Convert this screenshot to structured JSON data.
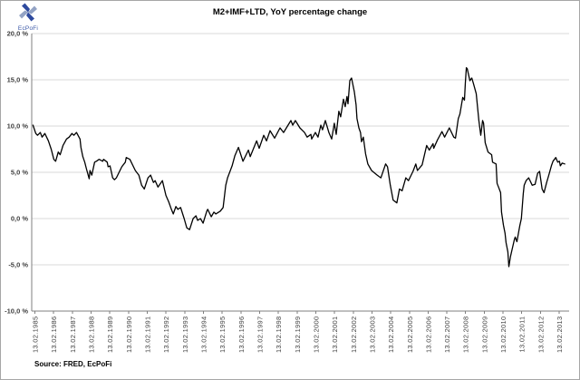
{
  "logo": {
    "text": "EcPoFi",
    "icon": "pinwheel-icon"
  },
  "source_note": "Source: FRED, EcPoFi",
  "colors": {
    "line": "#000000",
    "grid": "#d9d9d9",
    "axis": "#7f7f7f",
    "tick_label": "#404040",
    "title": "#000000",
    "logo_blue": "#2e4a9e",
    "logo_gray": "#93a3c4"
  },
  "chart_data": {
    "type": "line",
    "title": "M2+IMF+LTD, YoY percentage change",
    "xlabel": "",
    "ylabel": "",
    "grid": "horizontal",
    "legend": "none",
    "ylim": [
      -10,
      20
    ],
    "xlim": [
      1984.95,
      2013.65
    ],
    "y_tick_values": [
      20,
      15,
      10,
      5,
      0,
      -5,
      -10
    ],
    "y_tick_labels": [
      "20,0 %",
      "15,0 %",
      "10,0 %",
      "5,0 %",
      "0,0 %",
      "-5,0 %",
      "-10,0 %"
    ],
    "x_tick_labels": [
      "13.02.1985",
      "13.02.1986",
      "13.02.1987",
      "13.02.1988",
      "13.02.1989",
      "13.02.1990",
      "13.02.1991",
      "13.02.1992",
      "13.02.1993",
      "13.02.1994",
      "13.02.1995",
      "13.02.1996",
      "13.02.1997",
      "13.02.1998",
      "13.02.1999",
      "13.02.2000",
      "13.02.2001",
      "13.02.2002",
      "13.02.2003",
      "13.02.2004",
      "13.02.2005",
      "13.02.2006",
      "13.02.2007",
      "13.02.2008",
      "13.02.2009",
      "13.02.2010",
      "13.02.2011",
      "13.02.2012",
      "13.02.2013"
    ],
    "series": [
      {
        "name": "M2+IMF+LTD YoY percentage change",
        "color": "#000000",
        "points": [
          [
            1985.02,
            10.1
          ],
          [
            1985.17,
            9.2
          ],
          [
            1985.26,
            9.0
          ],
          [
            1985.41,
            9.3
          ],
          [
            1985.5,
            8.8
          ],
          [
            1985.65,
            9.2
          ],
          [
            1985.84,
            8.4
          ],
          [
            1985.99,
            7.5
          ],
          [
            1986.13,
            6.4
          ],
          [
            1986.23,
            6.2
          ],
          [
            1986.37,
            7.2
          ],
          [
            1986.47,
            6.9
          ],
          [
            1986.62,
            7.9
          ],
          [
            1986.81,
            8.6
          ],
          [
            1986.95,
            8.8
          ],
          [
            1987.1,
            9.2
          ],
          [
            1987.2,
            9.0
          ],
          [
            1987.34,
            9.3
          ],
          [
            1987.53,
            8.6
          ],
          [
            1987.58,
            7.7
          ],
          [
            1987.68,
            6.7
          ],
          [
            1987.78,
            6.1
          ],
          [
            1987.87,
            5.4
          ],
          [
            1988.02,
            4.3
          ],
          [
            1988.06,
            5.2
          ],
          [
            1988.16,
            4.7
          ],
          [
            1988.31,
            6.1
          ],
          [
            1988.4,
            6.2
          ],
          [
            1988.55,
            6.4
          ],
          [
            1988.74,
            6.2
          ],
          [
            1988.79,
            6.4
          ],
          [
            1988.98,
            6.1
          ],
          [
            1989.03,
            5.6
          ],
          [
            1989.13,
            5.7
          ],
          [
            1989.22,
            4.9
          ],
          [
            1989.27,
            4.4
          ],
          [
            1989.37,
            4.2
          ],
          [
            1989.47,
            4.4
          ],
          [
            1989.76,
            5.6
          ],
          [
            1989.95,
            6.1
          ],
          [
            1990.0,
            6.6
          ],
          [
            1990.19,
            6.4
          ],
          [
            1990.48,
            5.2
          ],
          [
            1990.67,
            4.7
          ],
          [
            1990.82,
            3.6
          ],
          [
            1990.96,
            3.2
          ],
          [
            1991.16,
            4.4
          ],
          [
            1991.3,
            4.7
          ],
          [
            1991.45,
            3.9
          ],
          [
            1991.54,
            4.1
          ],
          [
            1991.69,
            3.4
          ],
          [
            1991.93,
            4.1
          ],
          [
            1992.12,
            2.5
          ],
          [
            1992.27,
            1.8
          ],
          [
            1992.41,
            1.0
          ],
          [
            1992.51,
            0.5
          ],
          [
            1992.65,
            1.3
          ],
          [
            1992.75,
            1.0
          ],
          [
            1992.9,
            1.2
          ],
          [
            1993.09,
            0.0
          ],
          [
            1993.23,
            -1.0
          ],
          [
            1993.38,
            -1.2
          ],
          [
            1993.57,
            0.0
          ],
          [
            1993.72,
            0.3
          ],
          [
            1993.81,
            -0.2
          ],
          [
            1993.96,
            0.0
          ],
          [
            1994.1,
            -0.5
          ],
          [
            1994.3,
            0.8
          ],
          [
            1994.35,
            1.0
          ],
          [
            1994.54,
            0.2
          ],
          [
            1994.68,
            0.7
          ],
          [
            1994.78,
            0.5
          ],
          [
            1995.02,
            0.8
          ],
          [
            1995.17,
            1.2
          ],
          [
            1995.31,
            3.6
          ],
          [
            1995.41,
            4.4
          ],
          [
            1995.65,
            5.7
          ],
          [
            1995.8,
            6.8
          ],
          [
            1995.99,
            7.7
          ],
          [
            1996.23,
            6.2
          ],
          [
            1996.52,
            7.4
          ],
          [
            1996.62,
            6.7
          ],
          [
            1996.96,
            8.4
          ],
          [
            1997.1,
            7.6
          ],
          [
            1997.34,
            9.0
          ],
          [
            1997.49,
            8.4
          ],
          [
            1997.68,
            9.5
          ],
          [
            1997.92,
            8.7
          ],
          [
            1998.21,
            9.8
          ],
          [
            1998.4,
            9.3
          ],
          [
            1998.79,
            10.6
          ],
          [
            1998.89,
            10.1
          ],
          [
            1999.03,
            10.6
          ],
          [
            1999.27,
            9.8
          ],
          [
            1999.42,
            9.5
          ],
          [
            1999.52,
            9.3
          ],
          [
            1999.66,
            8.8
          ],
          [
            1999.86,
            9.1
          ],
          [
            1999.9,
            8.6
          ],
          [
            2000.1,
            9.3
          ],
          [
            2000.24,
            8.8
          ],
          [
            2000.39,
            10.1
          ],
          [
            2000.48,
            9.6
          ],
          [
            2000.63,
            10.6
          ],
          [
            2000.82,
            9.3
          ],
          [
            2000.97,
            8.6
          ],
          [
            2001.11,
            10.3
          ],
          [
            2001.21,
            9.1
          ],
          [
            2001.35,
            11.6
          ],
          [
            2001.45,
            11.0
          ],
          [
            2001.6,
            12.9
          ],
          [
            2001.69,
            12.1
          ],
          [
            2001.79,
            13.2
          ],
          [
            2001.84,
            12.4
          ],
          [
            2001.94,
            14.9
          ],
          [
            2002.03,
            15.2
          ],
          [
            2002.18,
            13.7
          ],
          [
            2002.27,
            12.3
          ],
          [
            2002.32,
            10.8
          ],
          [
            2002.42,
            9.8
          ],
          [
            2002.51,
            9.3
          ],
          [
            2002.56,
            8.3
          ],
          [
            2002.66,
            8.8
          ],
          [
            2002.78,
            7.0
          ],
          [
            2002.9,
            5.9
          ],
          [
            2003.1,
            5.2
          ],
          [
            2003.4,
            4.7
          ],
          [
            2003.6,
            4.4
          ],
          [
            2003.85,
            5.9
          ],
          [
            2003.95,
            5.6
          ],
          [
            2004.1,
            3.6
          ],
          [
            2004.25,
            2.0
          ],
          [
            2004.45,
            1.7
          ],
          [
            2004.59,
            3.2
          ],
          [
            2004.73,
            3.0
          ],
          [
            2004.93,
            4.4
          ],
          [
            2005.07,
            4.1
          ],
          [
            2005.31,
            5.1
          ],
          [
            2005.46,
            5.9
          ],
          [
            2005.55,
            5.2
          ],
          [
            2005.8,
            5.8
          ],
          [
            2006.04,
            7.9
          ],
          [
            2006.18,
            7.4
          ],
          [
            2006.38,
            8.1
          ],
          [
            2006.42,
            7.6
          ],
          [
            2006.62,
            8.5
          ],
          [
            2006.86,
            9.4
          ],
          [
            2007.0,
            8.8
          ],
          [
            2007.25,
            9.8
          ],
          [
            2007.49,
            8.8
          ],
          [
            2007.58,
            8.7
          ],
          [
            2007.73,
            10.8
          ],
          [
            2007.82,
            11.3
          ],
          [
            2007.97,
            13.1
          ],
          [
            2008.06,
            12.8
          ],
          [
            2008.11,
            14.7
          ],
          [
            2008.16,
            16.3
          ],
          [
            2008.21,
            16.2
          ],
          [
            2008.35,
            14.9
          ],
          [
            2008.45,
            15.2
          ],
          [
            2008.54,
            14.6
          ],
          [
            2008.69,
            13.5
          ],
          [
            2008.83,
            10.6
          ],
          [
            2008.93,
            9.0
          ],
          [
            2009.03,
            10.6
          ],
          [
            2009.08,
            10.3
          ],
          [
            2009.17,
            8.2
          ],
          [
            2009.32,
            7.2
          ],
          [
            2009.51,
            6.9
          ],
          [
            2009.56,
            6.1
          ],
          [
            2009.75,
            5.9
          ],
          [
            2009.8,
            3.8
          ],
          [
            2009.9,
            3.3
          ],
          [
            2009.99,
            2.8
          ],
          [
            2010.04,
            0.7
          ],
          [
            2010.14,
            -0.7
          ],
          [
            2010.23,
            -1.6
          ],
          [
            2010.28,
            -2.6
          ],
          [
            2010.38,
            -3.6
          ],
          [
            2010.43,
            -5.2
          ],
          [
            2010.52,
            -4.1
          ],
          [
            2010.62,
            -3.2
          ],
          [
            2010.72,
            -2.3
          ],
          [
            2010.77,
            -2.0
          ],
          [
            2010.86,
            -2.5
          ],
          [
            2011.01,
            -0.8
          ],
          [
            2011.1,
            0.0
          ],
          [
            2011.2,
            2.7
          ],
          [
            2011.25,
            3.6
          ],
          [
            2011.35,
            4.1
          ],
          [
            2011.49,
            4.4
          ],
          [
            2011.68,
            3.6
          ],
          [
            2011.83,
            3.7
          ],
          [
            2011.97,
            4.9
          ],
          [
            2012.07,
            5.1
          ],
          [
            2012.21,
            3.2
          ],
          [
            2012.31,
            2.8
          ],
          [
            2012.45,
            3.9
          ],
          [
            2012.55,
            4.6
          ],
          [
            2012.7,
            5.7
          ],
          [
            2012.79,
            6.2
          ],
          [
            2012.94,
            6.6
          ],
          [
            2013.04,
            6.1
          ],
          [
            2013.13,
            6.2
          ],
          [
            2013.18,
            5.7
          ],
          [
            2013.28,
            6.0
          ],
          [
            2013.42,
            5.9
          ]
        ]
      }
    ]
  }
}
